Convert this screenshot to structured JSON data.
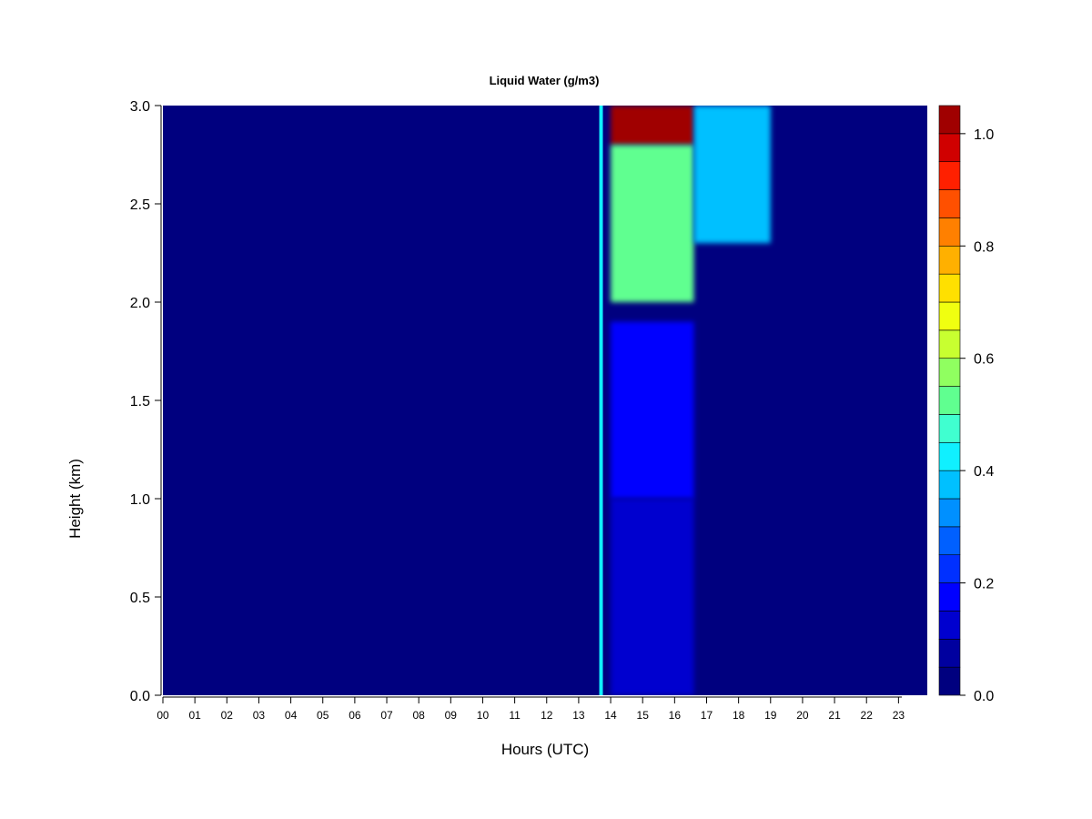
{
  "chart_data": {
    "type": "heatmap",
    "title": "Liquid Water (g/m3)",
    "xlabel": "Hours (UTC)",
    "ylabel": "Height (km)",
    "x_range": [
      0,
      23.9
    ],
    "y_range": [
      0,
      3.0
    ],
    "x_ticks": [
      "00",
      "01",
      "02",
      "03",
      "04",
      "05",
      "06",
      "07",
      "08",
      "09",
      "10",
      "11",
      "12",
      "13",
      "14",
      "15",
      "16",
      "17",
      "18",
      "19",
      "20",
      "21",
      "22",
      "23"
    ],
    "y_ticks": [
      "0.0",
      "0.5",
      "1.0",
      "1.5",
      "2.0",
      "2.5",
      "3.0"
    ],
    "colorbar": {
      "range": [
        0,
        1.05
      ],
      "levels": [
        0,
        0.05,
        0.1,
        0.15,
        0.2,
        0.25,
        0.3,
        0.35,
        0.4,
        0.45,
        0.5,
        0.55,
        0.6,
        0.65,
        0.7,
        0.75,
        0.8,
        0.85,
        0.9,
        0.95,
        1.0,
        1.05
      ],
      "ticks": [
        "0.0",
        "0.2",
        "0.4",
        "0.6",
        "0.8",
        "1.0"
      ],
      "colors": [
        "#00007f",
        "#00009f",
        "#0000cf",
        "#0000ff",
        "#0030ff",
        "#0060ff",
        "#0090ff",
        "#00c0ff",
        "#10f0ff",
        "#40ffd0",
        "#60ff90",
        "#90ff60",
        "#c8ff30",
        "#f0ff10",
        "#ffe000",
        "#ffb000",
        "#ff8000",
        "#ff5000",
        "#ff2000",
        "#d00000",
        "#a00000",
        "#800000"
      ]
    },
    "background_value": 0.0,
    "features": [
      {
        "x": 13.7,
        "y_from": 0.0,
        "y_to": 3.0,
        "value": 0.4
      },
      {
        "x_from": 14.0,
        "x_to": 16.6,
        "y_from": 2.8,
        "y_to": 3.0,
        "value": 1.0
      },
      {
        "x_from": 14.0,
        "x_to": 16.6,
        "y_from": 2.0,
        "y_to": 2.8,
        "value": 0.5
      },
      {
        "x_from": 16.6,
        "x_to": 19.0,
        "y_from": 2.3,
        "y_to": 3.0,
        "value": 0.35
      },
      {
        "x_from": 14.0,
        "x_to": 16.6,
        "y_from": 1.0,
        "y_to": 1.9,
        "value": 0.15
      },
      {
        "x_from": 14.0,
        "x_to": 16.6,
        "y_from": 0.0,
        "y_to": 1.0,
        "value": 0.1
      }
    ]
  }
}
